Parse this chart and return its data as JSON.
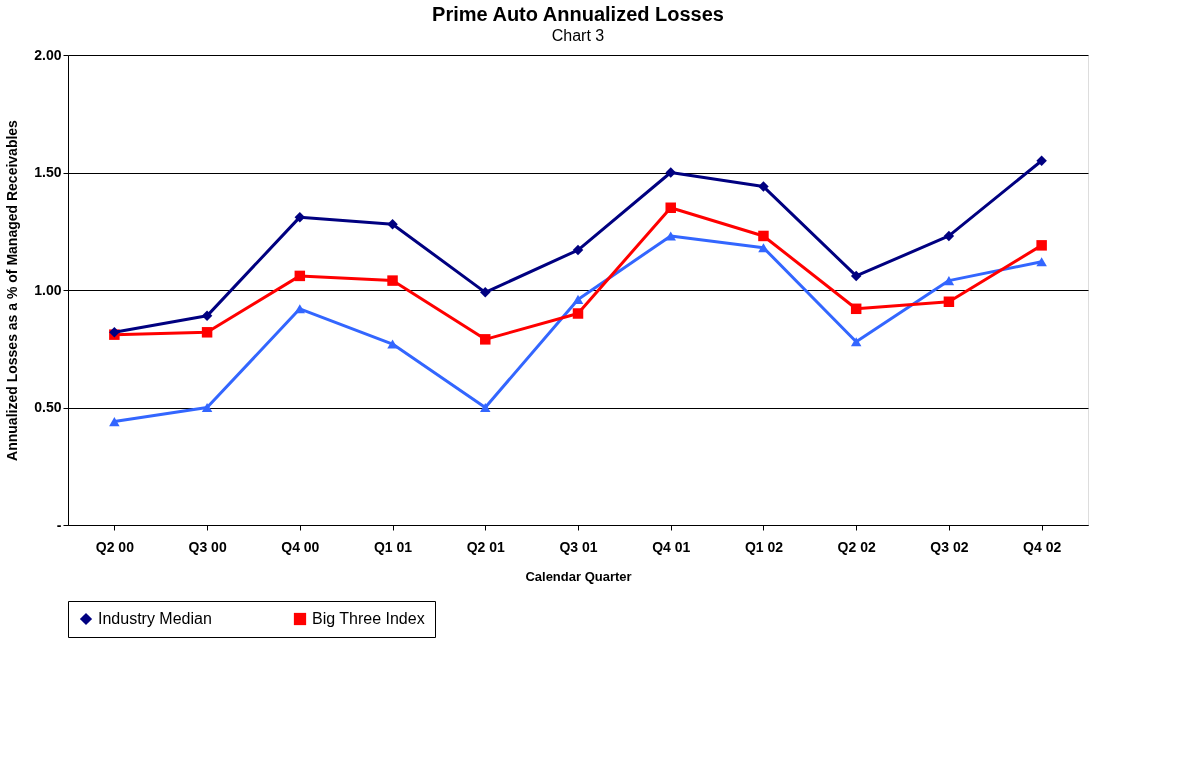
{
  "chart_data": {
    "type": "line",
    "title": "Prime Auto Annualized Losses",
    "annotations": [
      "Chart 3"
    ],
    "xlabel": "Calendar Quarter",
    "ylabel": "Annualized Losses as a % of Managed Receivables",
    "categories": [
      "Q2 00",
      "Q3 00",
      "Q4 00",
      "Q1 01",
      "Q2 01",
      "Q3 01",
      "Q4 01",
      "Q1 02",
      "Q2 02",
      "Q3 02",
      "Q4 02"
    ],
    "series": [
      {
        "name": "Industry Median",
        "color": "#000080",
        "marker": "diamond",
        "values": [
          0.82,
          0.89,
          1.31,
          1.28,
          0.99,
          1.17,
          1.5,
          1.44,
          1.06,
          1.23,
          1.55
        ]
      },
      {
        "name": "Big Three Index",
        "color": "#ff0000",
        "marker": "square",
        "values": [
          0.81,
          0.82,
          1.06,
          1.04,
          0.79,
          0.9,
          1.35,
          1.23,
          0.92,
          0.95,
          1.19
        ]
      },
      {
        "color": "#3366ff",
        "marker": "triangle",
        "values": [
          0.44,
          0.5,
          0.92,
          0.77,
          0.5,
          0.96,
          1.23,
          1.18,
          0.78,
          1.04,
          1.12
        ]
      }
    ],
    "ylim": [
      0,
      2
    ],
    "yticks": [
      {
        "value": 0,
        "label": "-"
      },
      {
        "value": 0.5,
        "label": "0.50"
      },
      {
        "value": 1,
        "label": "1.00"
      },
      {
        "value": 1.5,
        "label": "1.50"
      },
      {
        "value": 2,
        "label": "2.00"
      }
    ],
    "grid": "y",
    "legend": "bottom",
    "line_style": "solid"
  }
}
